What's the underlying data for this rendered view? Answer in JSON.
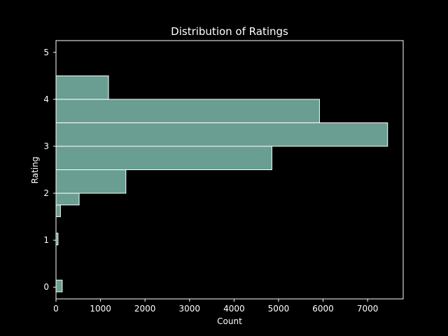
{
  "chart_data": {
    "type": "bar",
    "orientation": "horizontal-histogram",
    "title": "Distribution of Ratings",
    "xlabel": "Count",
    "ylabel": "Rating",
    "xlim": [
      0,
      7800
    ],
    "ylim": [
      -0.25,
      5.25
    ],
    "x_ticks": [
      "0",
      "1000",
      "2000",
      "3000",
      "4000",
      "5000",
      "6000",
      "7000"
    ],
    "y_ticks": [
      "0",
      "1",
      "2",
      "3",
      "4",
      "5"
    ],
    "bar_color": "#6a9e92",
    "edge_color": "#ffffff",
    "background": "#000000",
    "grid": false,
    "bins": [
      {
        "range": [
          -0.1,
          0.15
        ],
        "count": 140
      },
      {
        "range": [
          0.9,
          1.15
        ],
        "count": 45
      },
      {
        "range": [
          1.5,
          1.75
        ],
        "count": 100
      },
      {
        "range": [
          1.75,
          2.0
        ],
        "count": 520
      },
      {
        "range": [
          2.0,
          2.5
        ],
        "count": 1570
      },
      {
        "range": [
          2.5,
          3.0
        ],
        "count": 4850
      },
      {
        "range": [
          3.0,
          3.5
        ],
        "count": 7450
      },
      {
        "range": [
          3.5,
          4.0
        ],
        "count": 5920
      },
      {
        "range": [
          4.0,
          4.5
        ],
        "count": 1180
      }
    ]
  }
}
